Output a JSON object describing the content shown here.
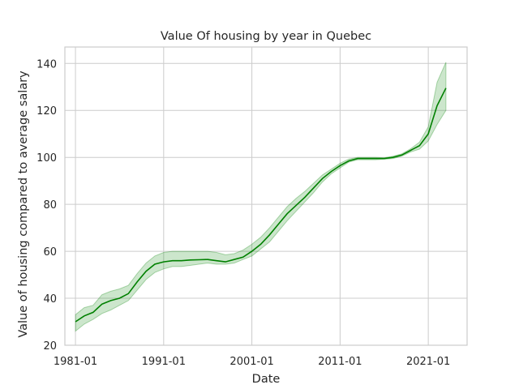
{
  "chart_data": {
    "type": "line",
    "title": "Value Of housing by year in Quebec",
    "xlabel": "Date",
    "ylabel": "Value of housing compared to average salary",
    "xlim": [
      1979.8,
      2025.4
    ],
    "ylim": [
      20,
      147
    ],
    "xticks": [
      {
        "label": "1981-01",
        "value": 1981
      },
      {
        "label": "1991-01",
        "value": 1991
      },
      {
        "label": "2001-01",
        "value": 2001
      },
      {
        "label": "2011-01",
        "value": 2011
      },
      {
        "label": "2021-01",
        "value": 2021
      }
    ],
    "yticks": [
      20,
      40,
      60,
      80,
      100,
      120,
      140
    ],
    "grid": true,
    "line_color": "#008000",
    "band_color": "#008000",
    "series": [
      {
        "x": [
          1981,
          1982,
          1983,
          1984,
          1985,
          1986,
          1987,
          1988,
          1989,
          1990,
          1991,
          1992,
          1993,
          1994,
          1995,
          1996,
          1997,
          1998,
          1999,
          2000,
          2001,
          2002,
          2003,
          2004,
          2005,
          2006,
          2007,
          2008,
          2009,
          2010,
          2011,
          2012,
          2013,
          2014,
          2015,
          2016,
          2017,
          2018,
          2019,
          2020,
          2021,
          2022,
          2023
        ],
        "y": [
          30,
          32.5,
          34,
          37.5,
          39,
          40,
          42,
          47,
          51.5,
          54.5,
          55.5,
          56,
          56,
          56.3,
          56.4,
          56.5,
          56,
          55.5,
          56.5,
          57.5,
          60,
          63,
          67,
          71.5,
          76,
          79.5,
          83,
          87,
          91,
          94,
          96.5,
          98.5,
          99.5,
          99.5,
          99.5,
          99.5,
          100,
          101,
          103,
          105,
          110,
          122,
          129.5
        ],
        "lower": [
          26,
          29,
          31,
          33.5,
          35,
          37,
          39,
          43.5,
          48,
          51,
          52.5,
          53.5,
          53.5,
          54,
          54.5,
          55,
          54.5,
          54.5,
          55,
          56.5,
          58,
          61,
          64,
          68.5,
          73,
          77,
          81,
          85,
          89.5,
          93,
          95.5,
          98,
          99,
          99,
          99,
          99.2,
          99.5,
          100.5,
          102.3,
          103.5,
          107,
          114,
          120
        ],
        "upper": [
          33,
          36,
          37,
          41.5,
          43,
          44,
          45.5,
          50.5,
          55,
          58,
          59.5,
          60,
          60,
          60,
          60,
          60,
          59.5,
          58.5,
          59,
          60.5,
          63,
          66,
          70,
          74.5,
          79,
          82.5,
          85.5,
          89,
          92.5,
          95,
          97.5,
          99.3,
          100,
          100,
          100,
          99.8,
          100.5,
          101.5,
          103.7,
          106.5,
          113,
          132,
          140.5
        ]
      }
    ]
  }
}
